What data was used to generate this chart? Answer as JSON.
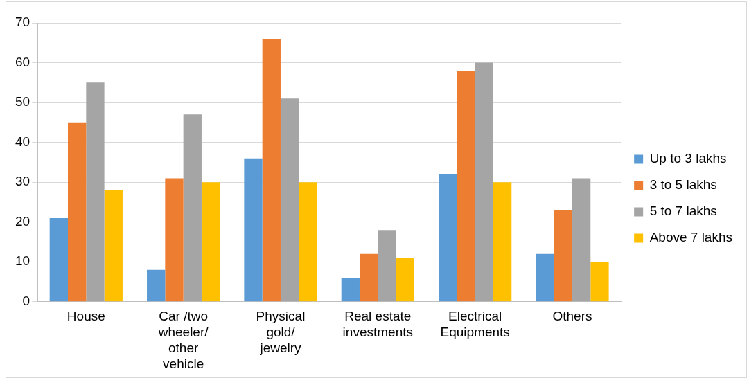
{
  "chart_data": {
    "type": "bar",
    "categories": [
      "House",
      "Car /two wheeler/ other vehicle",
      "Physical gold/ jewelry",
      "Real estate investments",
      "Electrical Equipments",
      "Others"
    ],
    "series": [
      {
        "name": "Up to 3 lakhs",
        "color": "#5b9bd5",
        "values": [
          21,
          8,
          36,
          6,
          32,
          12
        ]
      },
      {
        "name": "3 to 5 lakhs",
        "color": "#ed7d31",
        "values": [
          45,
          31,
          66,
          12,
          58,
          23
        ]
      },
      {
        "name": "5 to 7 lakhs",
        "color": "#a5a5a5",
        "values": [
          55,
          47,
          51,
          18,
          60,
          31
        ]
      },
      {
        "name": "Above 7 lakhs",
        "color": "#ffc000",
        "values": [
          28,
          30,
          30,
          11,
          30,
          10
        ]
      }
    ],
    "ylim": [
      0,
      70
    ],
    "yticks": [
      0,
      10,
      20,
      30,
      40,
      50,
      60,
      70
    ],
    "grid": "y",
    "legend": "right"
  }
}
